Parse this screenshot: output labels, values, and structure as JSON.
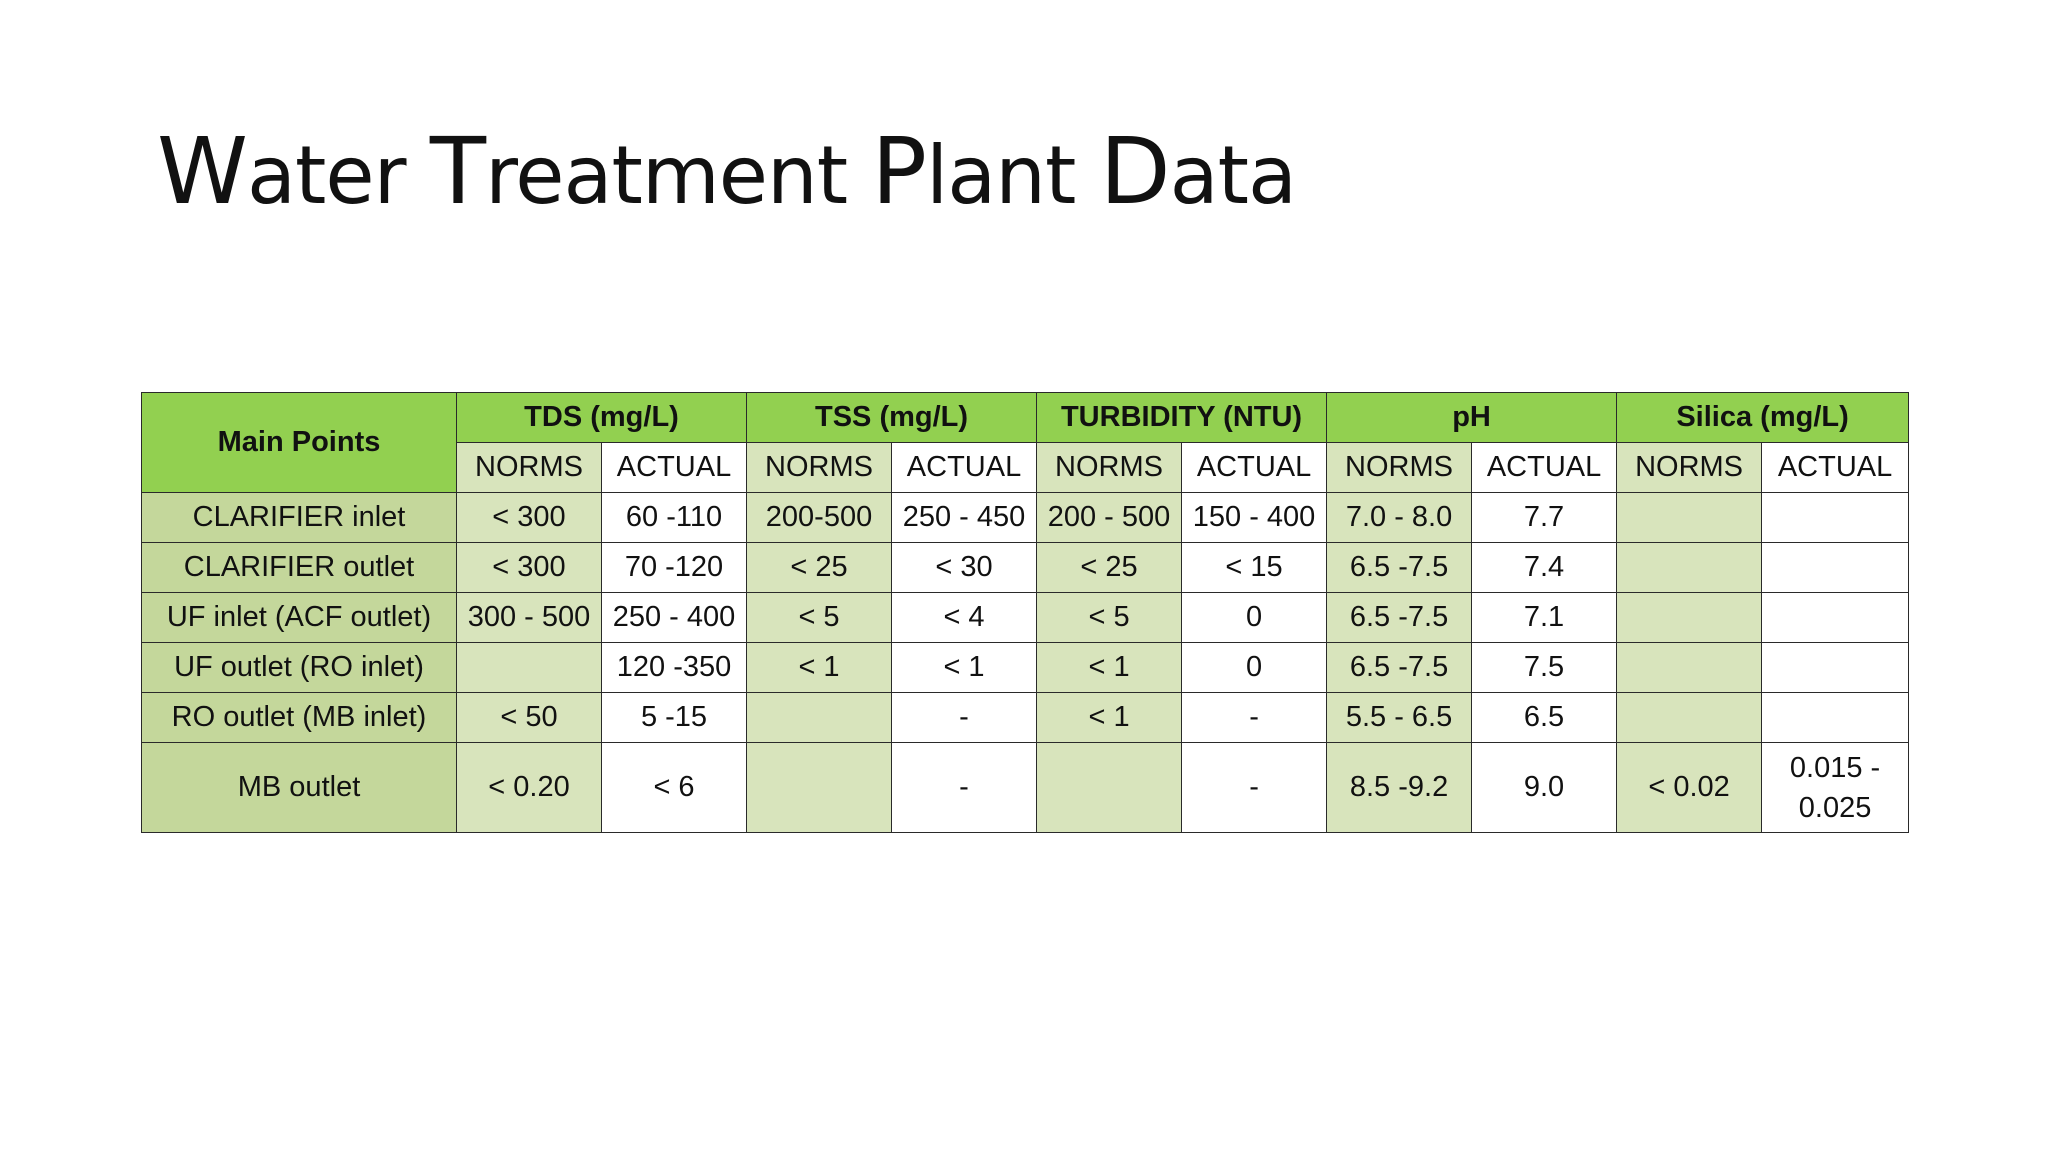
{
  "slide": {
    "title_parts": [
      {
        "cap": "W",
        "rest": "ater "
      },
      {
        "cap": "T",
        "rest": "reatment "
      },
      {
        "cap": "P",
        "rest": "lant "
      },
      {
        "cap": "D",
        "rest": "ata"
      }
    ]
  },
  "table": {
    "corner_header": "Main Points",
    "groups": [
      "TDS (mg/L)",
      "TSS (mg/L)",
      "TURBIDITY (NTU)",
      "pH",
      "Silica (mg/L)"
    ],
    "subheaders": [
      "NORMS",
      "ACTUAL",
      "NORMS",
      "ACTUAL",
      "NORMS",
      "ACTUAL",
      "NORMS",
      "ACTUAL",
      "NORMS",
      "ACTUAL"
    ],
    "rows": [
      {
        "label": "CLARIFIER inlet",
        "cells": [
          "< 300",
          "60 -110",
          "200-500",
          "250 - 450",
          "200 - 500",
          "150 - 400",
          "7.0 - 8.0",
          "7.7",
          "",
          ""
        ]
      },
      {
        "label": "CLARIFIER outlet",
        "cells": [
          "< 300",
          "70 -120",
          "< 25",
          "< 30",
          "< 25",
          "< 15",
          "6.5 -7.5",
          "7.4",
          "",
          ""
        ]
      },
      {
        "label": "UF inlet (ACF outlet)",
        "cells": [
          "300 - 500",
          "250 - 400",
          "< 5",
          "< 4",
          "< 5",
          "0",
          "6.5 -7.5",
          "7.1",
          "",
          ""
        ]
      },
      {
        "label": "UF outlet (RO inlet)",
        "cells": [
          "",
          "120 -350",
          "< 1",
          "< 1",
          "< 1",
          "0",
          "6.5 -7.5",
          "7.5",
          "",
          ""
        ]
      },
      {
        "label": "RO outlet (MB inlet)",
        "cells": [
          "< 50",
          "5 -15",
          "",
          "-",
          "< 1",
          "-",
          "5.5 - 6.5",
          "6.5",
          "",
          ""
        ]
      },
      {
        "label": "MB outlet",
        "cells": [
          "< 0.20",
          "< 6",
          "",
          "-",
          "",
          "-",
          "8.5 -9.2",
          "9.0",
          "< 0.02",
          "0.015 - 0.025"
        ]
      }
    ]
  }
}
